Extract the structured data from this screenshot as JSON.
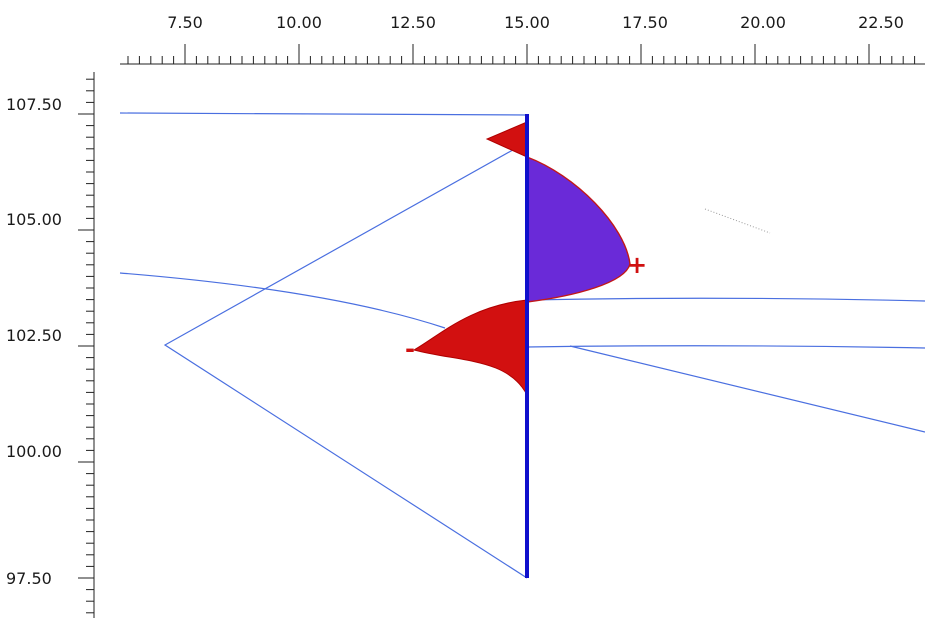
{
  "ruler": {
    "x_labels": [
      "7.50",
      "10.00",
      "12.50",
      "15.00",
      "17.50",
      "20.00",
      "22.50"
    ],
    "y_labels": [
      "107.50",
      "105.00",
      "102.50",
      "100.00",
      "97.50"
    ]
  },
  "signs": {
    "positive": "+",
    "negative": "-"
  },
  "colors": {
    "model_line": "#4a6fe0",
    "member": "#1010cc",
    "positive_fill": "#6a2ad8",
    "negative_fill": "#d21010",
    "ruler": "#222222"
  }
}
